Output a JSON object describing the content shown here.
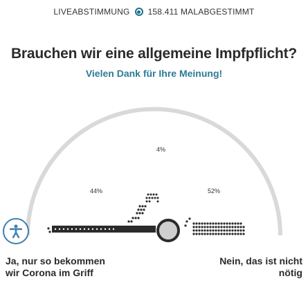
{
  "header": {
    "live_label": "LIVEABSTIMMUNG",
    "count_label": "158.411 MALABGESTIMMT"
  },
  "poll": {
    "question": "Brauchen wir eine allgemeine Impfpflicht?",
    "thanks": "Vielen Dank für Ihre Meinung!",
    "results": [
      {
        "label": "44%",
        "value": 44
      },
      {
        "label": "4%",
        "value": 4
      },
      {
        "label": "52%",
        "value": 52
      }
    ],
    "answers": {
      "yes": "Ja, nur so bekommen\nwir Corona im Griff",
      "no": "Nein, das ist nicht\nnötig"
    }
  },
  "colors": {
    "accent": "#2c7a96",
    "arc": "#d6d6d6",
    "dark": "#2b2b2b"
  }
}
